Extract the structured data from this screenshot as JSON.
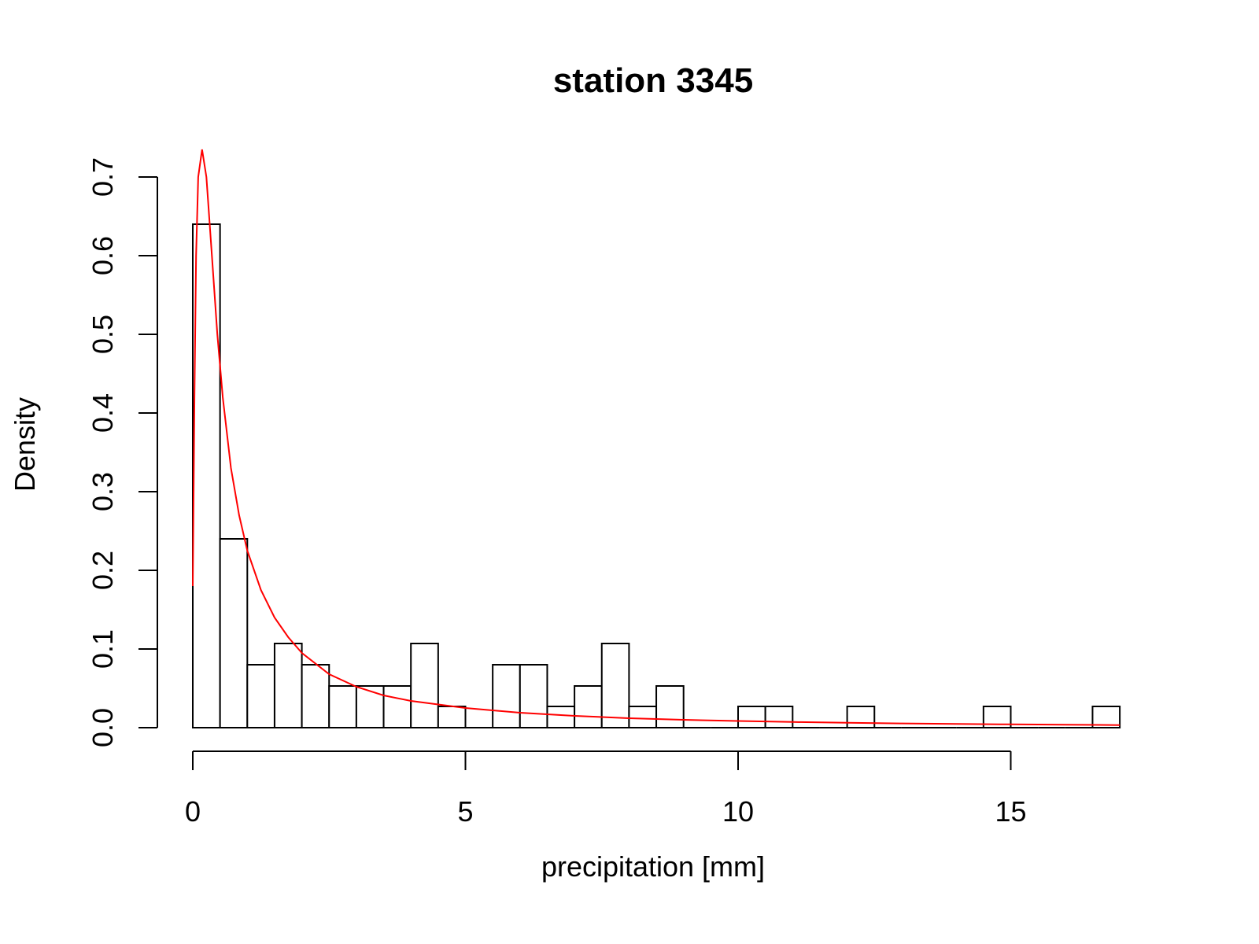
{
  "chart_data": {
    "type": "bar",
    "subtype": "histogram",
    "title": "station 3345",
    "xlabel": "precipitation [mm]",
    "ylabel": "Density",
    "xlim": [
      0,
      17
    ],
    "ylim": [
      0,
      0.7
    ],
    "x_ticks": [
      "0",
      "5",
      "10",
      "15"
    ],
    "y_ticks": [
      "0.0",
      "0.1",
      "0.2",
      "0.3",
      "0.4",
      "0.5",
      "0.6",
      "0.7"
    ],
    "bin_width": 0.5,
    "bins": [
      {
        "x0": 0.0,
        "x1": 0.5,
        "density": 0.64
      },
      {
        "x0": 0.5,
        "x1": 1.0,
        "density": 0.24
      },
      {
        "x0": 1.0,
        "x1": 1.5,
        "density": 0.08
      },
      {
        "x0": 1.5,
        "x1": 2.0,
        "density": 0.107
      },
      {
        "x0": 2.0,
        "x1": 2.5,
        "density": 0.08
      },
      {
        "x0": 2.5,
        "x1": 3.0,
        "density": 0.053
      },
      {
        "x0": 3.0,
        "x1": 3.5,
        "density": 0.053
      },
      {
        "x0": 3.5,
        "x1": 4.0,
        "density": 0.053
      },
      {
        "x0": 4.0,
        "x1": 4.5,
        "density": 0.107
      },
      {
        "x0": 4.5,
        "x1": 5.0,
        "density": 0.027
      },
      {
        "x0": 5.0,
        "x1": 5.5,
        "density": 0.0
      },
      {
        "x0": 5.5,
        "x1": 6.0,
        "density": 0.08
      },
      {
        "x0": 6.0,
        "x1": 6.5,
        "density": 0.08
      },
      {
        "x0": 6.5,
        "x1": 7.0,
        "density": 0.027
      },
      {
        "x0": 7.0,
        "x1": 7.5,
        "density": 0.053
      },
      {
        "x0": 7.5,
        "x1": 8.0,
        "density": 0.107
      },
      {
        "x0": 8.0,
        "x1": 8.5,
        "density": 0.027
      },
      {
        "x0": 8.5,
        "x1": 9.0,
        "density": 0.053
      },
      {
        "x0": 9.0,
        "x1": 9.5,
        "density": 0.0
      },
      {
        "x0": 9.5,
        "x1": 10.0,
        "density": 0.0
      },
      {
        "x0": 10.0,
        "x1": 10.5,
        "density": 0.027
      },
      {
        "x0": 10.5,
        "x1": 11.0,
        "density": 0.027
      },
      {
        "x0": 11.0,
        "x1": 11.5,
        "density": 0.0
      },
      {
        "x0": 11.5,
        "x1": 12.0,
        "density": 0.0
      },
      {
        "x0": 12.0,
        "x1": 12.5,
        "density": 0.027
      },
      {
        "x0": 12.5,
        "x1": 13.0,
        "density": 0.0
      },
      {
        "x0": 13.0,
        "x1": 13.5,
        "density": 0.0
      },
      {
        "x0": 13.5,
        "x1": 14.0,
        "density": 0.0
      },
      {
        "x0": 14.0,
        "x1": 14.5,
        "density": 0.0
      },
      {
        "x0": 14.5,
        "x1": 15.0,
        "density": 0.027
      },
      {
        "x0": 15.0,
        "x1": 15.5,
        "density": 0.0
      },
      {
        "x0": 15.5,
        "x1": 16.0,
        "density": 0.0
      },
      {
        "x0": 16.0,
        "x1": 16.5,
        "density": 0.0
      },
      {
        "x0": 16.5,
        "x1": 17.0,
        "density": 0.027
      }
    ],
    "fitted_curve": {
      "color": "#ff0000",
      "points": [
        {
          "x": 0.0,
          "y": 0.18
        },
        {
          "x": 0.03,
          "y": 0.42
        },
        {
          "x": 0.06,
          "y": 0.6
        },
        {
          "x": 0.1,
          "y": 0.7
        },
        {
          "x": 0.17,
          "y": 0.735
        },
        {
          "x": 0.25,
          "y": 0.7
        },
        {
          "x": 0.35,
          "y": 0.6
        },
        {
          "x": 0.45,
          "y": 0.5
        },
        {
          "x": 0.55,
          "y": 0.42
        },
        {
          "x": 0.7,
          "y": 0.33
        },
        {
          "x": 0.85,
          "y": 0.27
        },
        {
          "x": 1.0,
          "y": 0.225
        },
        {
          "x": 1.25,
          "y": 0.175
        },
        {
          "x": 1.5,
          "y": 0.14
        },
        {
          "x": 1.75,
          "y": 0.115
        },
        {
          "x": 2.0,
          "y": 0.095
        },
        {
          "x": 2.5,
          "y": 0.068
        },
        {
          "x": 3.0,
          "y": 0.052
        },
        {
          "x": 3.5,
          "y": 0.041
        },
        {
          "x": 4.0,
          "y": 0.034
        },
        {
          "x": 5.0,
          "y": 0.025
        },
        {
          "x": 6.0,
          "y": 0.019
        },
        {
          "x": 7.0,
          "y": 0.015
        },
        {
          "x": 8.0,
          "y": 0.012
        },
        {
          "x": 9.0,
          "y": 0.01
        },
        {
          "x": 10.0,
          "y": 0.0085
        },
        {
          "x": 11.0,
          "y": 0.0072
        },
        {
          "x": 12.0,
          "y": 0.0062
        },
        {
          "x": 13.0,
          "y": 0.0054
        },
        {
          "x": 14.0,
          "y": 0.0047
        },
        {
          "x": 15.0,
          "y": 0.0042
        },
        {
          "x": 16.0,
          "y": 0.0037
        },
        {
          "x": 17.0,
          "y": 0.0033
        }
      ]
    },
    "grid": false,
    "legend": "none"
  }
}
